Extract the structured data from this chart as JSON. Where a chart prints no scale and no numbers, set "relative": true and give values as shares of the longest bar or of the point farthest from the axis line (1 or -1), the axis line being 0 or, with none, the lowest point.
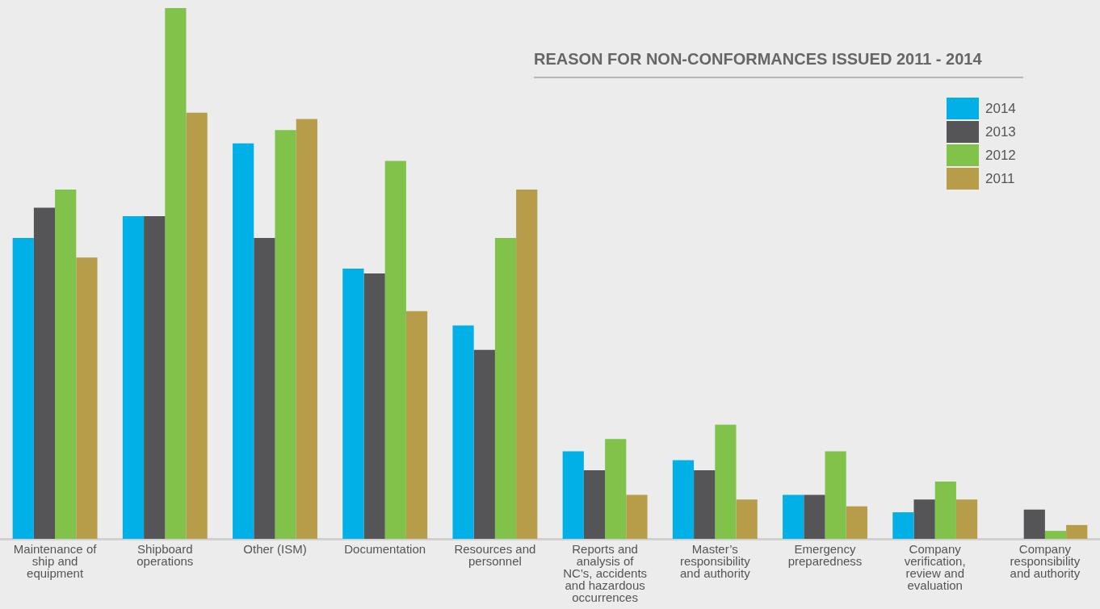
{
  "chart_data": {
    "type": "bar",
    "title": "REASON FOR NON-CONFORMANCES ISSUED 2011 - 2014",
    "relative": true,
    "legend": "top right",
    "grid": false,
    "categories": [
      "Maintenance of ship and equipment",
      "Shipboard operations",
      "Other (ISM)",
      "Documentation",
      "Resources and personnel",
      "Reports and analysis of NC’s, accidents and hazardous occurrences",
      "Master’s responsibility and authority",
      "Emergency preparedness",
      "Company verification, review and evaluation",
      "Company responsibility and authority"
    ],
    "series": [
      {
        "name": "2014",
        "color": "#00b0e6",
        "values": [
          0.567,
          0.608,
          0.745,
          0.509,
          0.402,
          0.165,
          0.148,
          0.083,
          0.05,
          0
        ]
      },
      {
        "name": "2013",
        "color": "#555558",
        "values": [
          0.624,
          0.608,
          0.567,
          0.5,
          0.356,
          0.129,
          0.129,
          0.083,
          0.074,
          0.055
        ]
      },
      {
        "name": "2012",
        "color": "#80c24a",
        "values": [
          0.658,
          1,
          0.77,
          0.712,
          0.567,
          0.188,
          0.215,
          0.165,
          0.108,
          0.015
        ]
      },
      {
        "name": "2011",
        "color": "#b79c4a",
        "values": [
          0.53,
          0.803,
          0.791,
          0.429,
          0.658,
          0.083,
          0.074,
          0.061,
          0.074,
          0.026
        ]
      }
    ]
  }
}
